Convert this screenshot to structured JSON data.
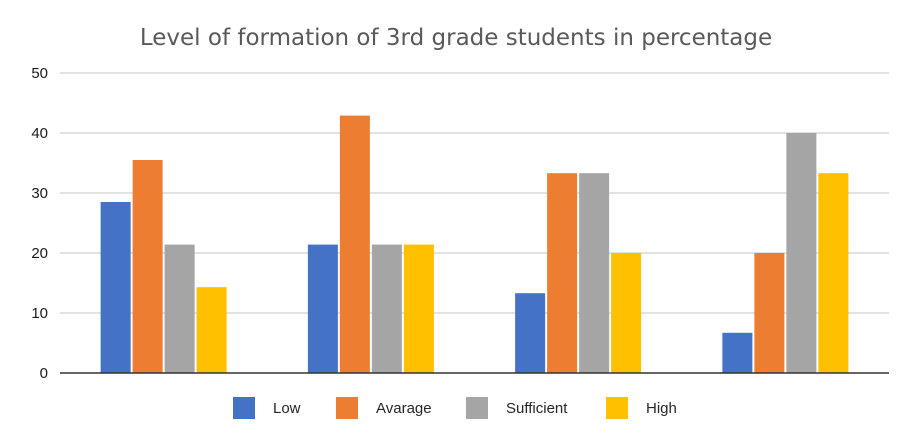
{
  "chart_data": {
    "type": "bar",
    "title": "Level of formation of 3rd grade students in percentage",
    "xlabel": "",
    "ylabel": "",
    "categories": [
      "",
      "",
      "",
      ""
    ],
    "ylim": [
      0,
      50
    ],
    "yticks": [
      0,
      10,
      20,
      30,
      40,
      50
    ],
    "grid": true,
    "legend_position": "bottom",
    "series": [
      {
        "name": "Low",
        "color": "#4472C4",
        "values": [
          28.5,
          21.4,
          13.3,
          6.7
        ]
      },
      {
        "name": "Avarage",
        "color": "#ED7D31",
        "values": [
          35.5,
          42.9,
          33.3,
          20.0
        ]
      },
      {
        "name": "Sufficient",
        "color": "#A5A5A5",
        "values": [
          21.4,
          21.4,
          33.3,
          40.0
        ]
      },
      {
        "name": "High",
        "color": "#FFC000",
        "values": [
          14.3,
          21.4,
          20.0,
          33.3
        ]
      }
    ]
  }
}
